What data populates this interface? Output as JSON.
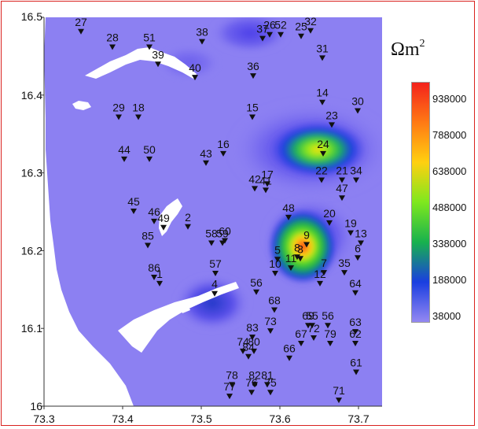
{
  "map": {
    "unit": "Ωm",
    "unit_exp": "2",
    "x_ticks": [
      "73.3",
      "73.4",
      "73.5",
      "73.6",
      "73.7"
    ],
    "y_ticks": [
      "16.5",
      "16.4",
      "16.3",
      "16.2",
      "16.1",
      "16"
    ],
    "x_range": [
      73.3,
      73.73
    ],
    "y_range": [
      16.0,
      16.5
    ],
    "land_color": "#8c80f2",
    "sea_color": "#ffffff",
    "colorbar": {
      "labels": [
        "938000",
        "788000",
        "638000",
        "488000",
        "338000",
        "188000",
        "38000"
      ],
      "colors": [
        "#f3221c",
        "#ff7a14",
        "#ffd010",
        "#7ee81e",
        "#17b14e",
        "#1a3ee0",
        "#9488f2"
      ]
    },
    "stations": [
      {
        "id": "27",
        "lon": 73.347,
        "lat": 16.482
      },
      {
        "id": "28",
        "lon": 73.387,
        "lat": 16.462
      },
      {
        "id": "51",
        "lon": 73.434,
        "lat": 16.462
      },
      {
        "id": "38",
        "lon": 73.501,
        "lat": 16.469
      },
      {
        "id": "39",
        "lon": 73.445,
        "lat": 16.44
      },
      {
        "id": "40",
        "lon": 73.492,
        "lat": 16.423
      },
      {
        "id": "36",
        "lon": 73.566,
        "lat": 16.425
      },
      {
        "id": "37",
        "lon": 73.578,
        "lat": 16.473
      },
      {
        "id": "26",
        "lon": 73.587,
        "lat": 16.478
      },
      {
        "id": "52",
        "lon": 73.601,
        "lat": 16.478
      },
      {
        "id": "25",
        "lon": 73.627,
        "lat": 16.476
      },
      {
        "id": "32",
        "lon": 73.639,
        "lat": 16.483
      },
      {
        "id": "31",
        "lon": 73.654,
        "lat": 16.448
      },
      {
        "id": "14",
        "lon": 73.654,
        "lat": 16.391
      },
      {
        "id": "30",
        "lon": 73.699,
        "lat": 16.38
      },
      {
        "id": "29",
        "lon": 73.395,
        "lat": 16.372
      },
      {
        "id": "18",
        "lon": 73.42,
        "lat": 16.372
      },
      {
        "id": "15",
        "lon": 73.565,
        "lat": 16.372
      },
      {
        "id": "23",
        "lon": 73.666,
        "lat": 16.362
      },
      {
        "id": "44",
        "lon": 73.402,
        "lat": 16.318
      },
      {
        "id": "50",
        "lon": 73.434,
        "lat": 16.318
      },
      {
        "id": "16",
        "lon": 73.528,
        "lat": 16.325
      },
      {
        "id": "43",
        "lon": 73.506,
        "lat": 16.313
      },
      {
        "id": "24",
        "lon": 73.655,
        "lat": 16.325
      },
      {
        "id": "22",
        "lon": 73.653,
        "lat": 16.291
      },
      {
        "id": "21",
        "lon": 73.679,
        "lat": 16.291
      },
      {
        "id": "34",
        "lon": 73.697,
        "lat": 16.291
      },
      {
        "id": "17",
        "lon": 73.584,
        "lat": 16.286
      },
      {
        "id": "42",
        "lon": 73.568,
        "lat": 16.28
      },
      {
        "id": "41",
        "lon": 73.582,
        "lat": 16.278
      },
      {
        "id": "47",
        "lon": 73.679,
        "lat": 16.268
      },
      {
        "id": "45",
        "lon": 73.414,
        "lat": 16.251
      },
      {
        "id": "46",
        "lon": 73.44,
        "lat": 16.238
      },
      {
        "id": "49",
        "lon": 73.452,
        "lat": 16.23
      },
      {
        "id": "2",
        "lon": 73.483,
        "lat": 16.231
      },
      {
        "id": "48",
        "lon": 73.611,
        "lat": 16.243
      },
      {
        "id": "20",
        "lon": 73.663,
        "lat": 16.236
      },
      {
        "id": "19",
        "lon": 73.69,
        "lat": 16.223
      },
      {
        "id": "13",
        "lon": 73.703,
        "lat": 16.21
      },
      {
        "id": "85",
        "lon": 73.432,
        "lat": 16.207
      },
      {
        "id": "58",
        "lon": 73.513,
        "lat": 16.21
      },
      {
        "id": "59",
        "lon": 73.527,
        "lat": 16.21
      },
      {
        "id": "60",
        "lon": 73.53,
        "lat": 16.213
      },
      {
        "id": "9",
        "lon": 73.634,
        "lat": 16.208
      },
      {
        "id": "3",
        "lon": 73.626,
        "lat": 16.19
      },
      {
        "id": "8",
        "lon": 73.622,
        "lat": 16.192
      },
      {
        "id": "6",
        "lon": 73.699,
        "lat": 16.191
      },
      {
        "id": "5",
        "lon": 73.597,
        "lat": 16.189
      },
      {
        "id": "11",
        "lon": 73.614,
        "lat": 16.178
      },
      {
        "id": "10",
        "lon": 73.594,
        "lat": 16.171
      },
      {
        "id": "7",
        "lon": 73.656,
        "lat": 16.172
      },
      {
        "id": "35",
        "lon": 73.682,
        "lat": 16.172
      },
      {
        "id": "57",
        "lon": 73.518,
        "lat": 16.171
      },
      {
        "id": "86",
        "lon": 73.44,
        "lat": 16.166
      },
      {
        "id": "1",
        "lon": 73.447,
        "lat": 16.158
      },
      {
        "id": "12",
        "lon": 73.651,
        "lat": 16.158
      },
      {
        "id": "64",
        "lon": 73.696,
        "lat": 16.146
      },
      {
        "id": "4",
        "lon": 73.517,
        "lat": 16.145
      },
      {
        "id": "56",
        "lon": 73.57,
        "lat": 16.147
      },
      {
        "id": "68",
        "lon": 73.593,
        "lat": 16.124
      },
      {
        "id": "69",
        "lon": 73.636,
        "lat": 16.104
      },
      {
        "id": "55",
        "lon": 73.641,
        "lat": 16.104
      },
      {
        "id": "50b",
        "lon": 73.661,
        "lat": 16.104,
        "label": "56"
      },
      {
        "id": "73",
        "lon": 73.588,
        "lat": 16.097
      },
      {
        "id": "63",
        "lon": 73.696,
        "lat": 16.096
      },
      {
        "id": "83",
        "lon": 73.565,
        "lat": 16.089
      },
      {
        "id": "72",
        "lon": 73.643,
        "lat": 16.088
      },
      {
        "id": "67",
        "lon": 73.627,
        "lat": 16.081
      },
      {
        "id": "79",
        "lon": 73.664,
        "lat": 16.081
      },
      {
        "id": "62",
        "lon": 73.696,
        "lat": 16.081
      },
      {
        "id": "74",
        "lon": 73.553,
        "lat": 16.071
      },
      {
        "id": "80",
        "lon": 73.567,
        "lat": 16.071
      },
      {
        "id": "84",
        "lon": 73.56,
        "lat": 16.064
      },
      {
        "id": "66",
        "lon": 73.612,
        "lat": 16.062
      },
      {
        "id": "61",
        "lon": 73.697,
        "lat": 16.044
      },
      {
        "id": "78",
        "lon": 73.539,
        "lat": 16.028
      },
      {
        "id": "82",
        "lon": 73.568,
        "lat": 16.028
      },
      {
        "id": "81",
        "lon": 73.584,
        "lat": 16.028
      },
      {
        "id": "77",
        "lon": 73.536,
        "lat": 16.013
      },
      {
        "id": "76",
        "lon": 73.564,
        "lat": 16.018
      },
      {
        "id": "75",
        "lon": 73.588,
        "lat": 16.018
      },
      {
        "id": "71",
        "lon": 73.675,
        "lat": 16.008
      }
    ]
  }
}
